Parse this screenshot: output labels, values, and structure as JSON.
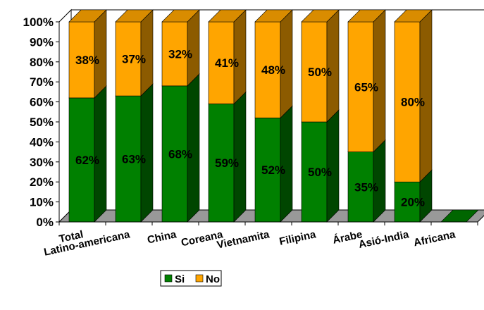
{
  "chart_data": {
    "type": "bar",
    "stacked": true,
    "three_d": true,
    "categories": [
      "Total",
      "Latino-americana",
      "China",
      "Coreana",
      "Vietnamita",
      "Filipina",
      "Árabe",
      "Asió-India",
      "Africana"
    ],
    "series": [
      {
        "name": "Si",
        "values": [
          62,
          63,
          68,
          59,
          52,
          50,
          35,
          20,
          0
        ],
        "color": "#008000"
      },
      {
        "name": "No",
        "values": [
          38,
          37,
          32,
          41,
          48,
          50,
          65,
          80,
          0
        ],
        "color": "#FFA500"
      }
    ],
    "data_labels": {
      "Si": [
        "62%",
        "63%",
        "68%",
        "59%",
        "52%",
        "50%",
        "35%",
        "20%",
        ""
      ],
      "No": [
        "38%",
        "37%",
        "32%",
        "41%",
        "48%",
        "50%",
        "65%",
        "80%",
        ""
      ]
    },
    "y_ticks": [
      "0%",
      "10%",
      "20%",
      "30%",
      "40%",
      "50%",
      "60%",
      "70%",
      "80%",
      "90%",
      "100%"
    ],
    "ylim": [
      0,
      100
    ],
    "grid": false,
    "legend_position": "bottom"
  }
}
